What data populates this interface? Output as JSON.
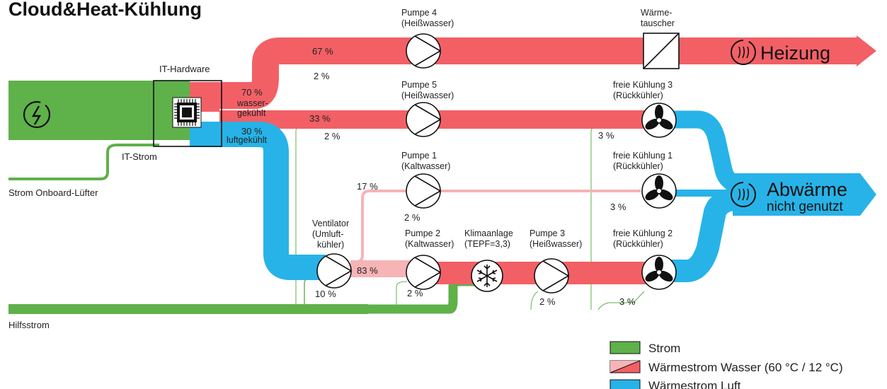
{
  "title": "Cloud&Heat-Kühlung",
  "colors": {
    "strom": "#5fb14a",
    "wasser": "#f26066",
    "wasser_light": "#f6b4b6",
    "luft": "#27b3e8"
  },
  "nodes": {
    "it_hardware": "IT-Hardware",
    "it_strom": "IT-Strom",
    "strom_onboard": "Strom Onboard-Lüfter",
    "hilfsstrom": "Hilfsstrom",
    "pumpe4": [
      "Pumpe 4",
      "(Heißwasser)"
    ],
    "pumpe5": [
      "Pumpe 5",
      "(Heißwasser)"
    ],
    "pumpe1": [
      "Pumpe 1",
      "(Kaltwasser)"
    ],
    "pumpe2": [
      "Pumpe 2",
      "(Kaltwasser)"
    ],
    "pumpe3": [
      "Pumpe 3",
      "(Heißwasser)"
    ],
    "klimaanlage": [
      "Klimaanlage",
      "(TEPF=3,3)"
    ],
    "ventilator": [
      "Ventilator",
      "(Umluft-",
      "kühler)"
    ],
    "waermetauscher": [
      "Wärme-",
      "tauscher"
    ],
    "fk3": [
      "freie Kühlung 3",
      "(Rückkühler)"
    ],
    "fk1": [
      "freie Kühlung 1",
      "(Rückkühler)"
    ],
    "fk2": [
      "freie Kühlung 2",
      "(Rückkühler)"
    ],
    "heizung": "Heizung",
    "abwaerme": [
      "Abwärme",
      "nicht genutzt"
    ]
  },
  "flows": {
    "wasser_pct": "70 %",
    "wasser_label": [
      "wasser-",
      "gekühlt"
    ],
    "luft_pct": "30 %",
    "luft_label": "luftgekühlt",
    "p67": "67 %",
    "p33": "33 %",
    "p17": "17 %",
    "p83": "83 %",
    "p2a": "2 %",
    "p2b": "2 %",
    "p2c": "2 %",
    "p2d": "2 %",
    "p2e": "2 %",
    "p10": "10 %",
    "p3a": "3 %",
    "p3b": "3 %",
    "p3c": "3 %"
  },
  "legend": [
    {
      "label": "Strom",
      "kind": "strom"
    },
    {
      "label": "Wärmestrom Wasser (60 °C / 12 °C)",
      "kind": "wasser"
    },
    {
      "label": "Wärmestrom Luft",
      "kind": "luft"
    }
  ],
  "icons": [
    "power-icon",
    "chip-icon",
    "pump-icon",
    "heat-exchanger-icon",
    "fan-icon",
    "snowflake-icon",
    "heat-waves-icon"
  ]
}
